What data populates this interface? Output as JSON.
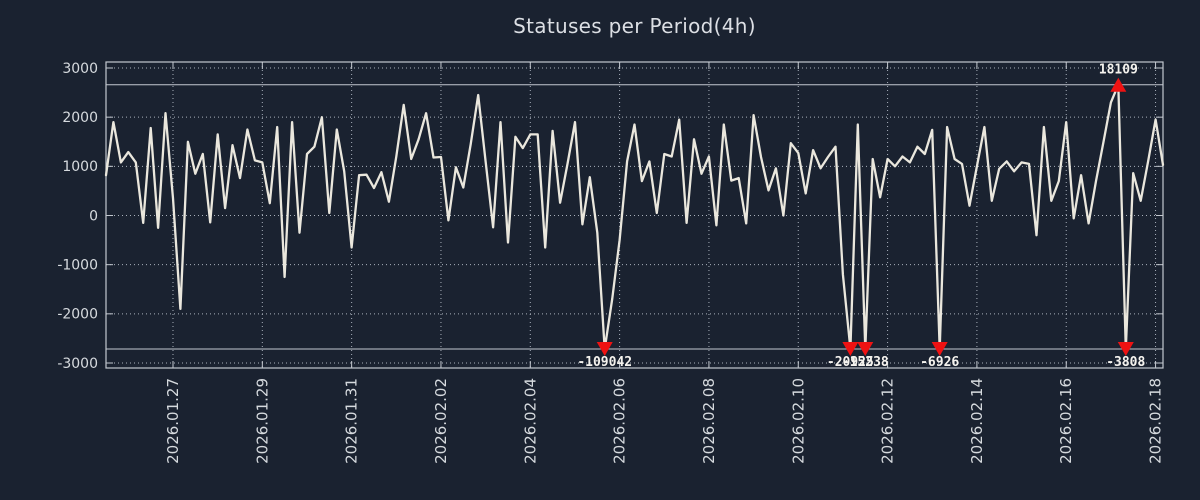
{
  "title": "Statuses per Period(4h)",
  "colors": {
    "background": "#1a2230",
    "line": "#eae7dd",
    "grid": "#a9b1bb",
    "frame": "#c3c8cf",
    "clip_line": "#c3c8cf",
    "tick_text": "#d6dade",
    "marker_red": "#ee1212",
    "outlier_text": "#f5f3ee"
  },
  "chart_data": {
    "type": "line",
    "title": "Statuses per Period(4h)",
    "period_hours": 4,
    "start_time": "2026.01.25 12:00",
    "grid": "dotted",
    "legend_position": "none",
    "ylim": [
      -3110,
      3120
    ],
    "display_clamp": {
      "top": 2660,
      "bottom": -2715
    },
    "y_ticks": [
      {
        "value": 3000,
        "label": "3000"
      },
      {
        "value": 2000,
        "label": "2000"
      },
      {
        "value": 1000,
        "label": "1000"
      },
      {
        "value": 0,
        "label": "0"
      },
      {
        "value": -1000,
        "label": "-1000"
      },
      {
        "value": -2000,
        "label": "-2000"
      },
      {
        "value": -3000,
        "label": "-3000"
      }
    ],
    "x_ticks": [
      {
        "index": 9,
        "label": "2026.01.27"
      },
      {
        "index": 21,
        "label": "2026.01.29"
      },
      {
        "index": 33,
        "label": "2026.01.31"
      },
      {
        "index": 45,
        "label": "2026.02.02"
      },
      {
        "index": 57,
        "label": "2026.02.04"
      },
      {
        "index": 69,
        "label": "2026.02.06"
      },
      {
        "index": 81,
        "label": "2026.02.08"
      },
      {
        "index": 93,
        "label": "2026.02.10"
      },
      {
        "index": 105,
        "label": "2026.02.12"
      },
      {
        "index": 117,
        "label": "2026.02.14"
      },
      {
        "index": 129,
        "label": "2026.02.16"
      },
      {
        "index": 141,
        "label": "2026.02.18"
      }
    ],
    "values": [
      820,
      1900,
      1080,
      1290,
      1080,
      -150,
      1780,
      -250,
      2080,
      350,
      -1900,
      1500,
      850,
      1250,
      -140,
      1650,
      150,
      1430,
      760,
      1750,
      1120,
      1080,
      250,
      1800,
      -1250,
      1900,
      -350,
      1250,
      1400,
      2000,
      50,
      1750,
      900,
      -650,
      820,
      830,
      560,
      880,
      280,
      1200,
      2250,
      1150,
      1550,
      2080,
      1180,
      1190,
      -100,
      980,
      570,
      1450,
      2450,
      1100,
      -240,
      1900,
      -550,
      1600,
      1370,
      1650,
      1650,
      -650,
      1720,
      260,
      1050,
      1900,
      -180,
      780,
      -350,
      -109042,
      -1700,
      -500,
      1100,
      1850,
      700,
      1100,
      50,
      1250,
      1200,
      1950,
      -150,
      1550,
      850,
      1200,
      -200,
      1850,
      710,
      760,
      -160,
      2040,
      1190,
      510,
      960,
      0,
      1470,
      1270,
      450,
      1330,
      960,
      1190,
      1400,
      -1200,
      -20925,
      1850,
      -15238,
      1150,
      370,
      1150,
      1000,
      1200,
      1080,
      1400,
      1250,
      1740,
      -6926,
      1800,
      1150,
      1050,
      200,
      1000,
      1800,
      300,
      950,
      1100,
      900,
      1080,
      1050,
      -400,
      1800,
      300,
      700,
      1900,
      -60,
      820,
      -160,
      700,
      1500,
      2300,
      18109,
      -3808,
      860,
      300,
      1100,
      1950,
      1030
    ],
    "outliers": [
      {
        "index": 67,
        "value": -109042,
        "label": "-109042"
      },
      {
        "index": 100,
        "value": -20925,
        "label": "-20925"
      },
      {
        "index": 102,
        "value": -15238,
        "label": "-15238"
      },
      {
        "index": 112,
        "value": -6926,
        "label": "-6926"
      },
      {
        "index": 136,
        "value": 18109,
        "label": "18109"
      },
      {
        "index": 137,
        "value": -3808,
        "label": "-3808"
      }
    ]
  }
}
